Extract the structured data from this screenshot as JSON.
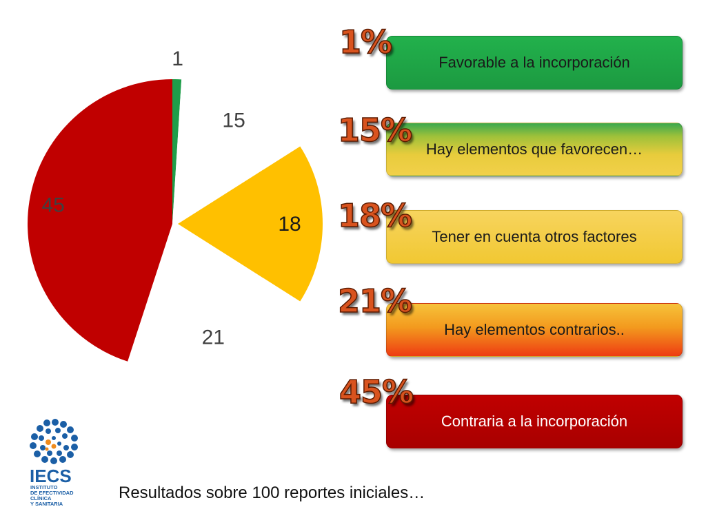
{
  "chart_data": {
    "type": "pie",
    "categories": [
      "Favorable a la incorporación",
      "Hay elementos que favorecen…",
      "Tener en cuenta otros factores",
      "Hay elementos contrarios..",
      "Contraria a la incorporación"
    ],
    "values": [
      1,
      15,
      18,
      21,
      45
    ],
    "labels": [
      "1",
      "15",
      "18",
      "21",
      "45"
    ],
    "colors": [
      "#1f9e4a",
      "#ffffff",
      "#ffc000",
      "#ffffff",
      "#c00000"
    ],
    "label_colors": [
      "#404040",
      "#404040",
      "#1a1a1a",
      "#404040",
      "#404040"
    ],
    "exploded": [
      false,
      false,
      true,
      false,
      false
    ]
  },
  "legend": {
    "items": [
      {
        "percent": "1%",
        "label": "Favorable a la incorporación"
      },
      {
        "percent": "15%",
        "label": "Hay elementos que favorecen…"
      },
      {
        "percent": "18%",
        "label": "Tener en cuenta otros factores"
      },
      {
        "percent": "21%",
        "label": "Hay elementos contrarios.."
      },
      {
        "percent": "45%",
        "label": "Contraria a la incorporación"
      }
    ]
  },
  "caption": "Resultados sobre 100 reportes iniciales…",
  "logo": {
    "name": "IECS",
    "subtitle": [
      "INSTITUTO",
      "DE EFECTIVIDAD",
      "CLÍNICA",
      "Y SANITARIA"
    ],
    "colors": {
      "blue": "#1b5fa6",
      "orange": "#f08c1e"
    }
  }
}
